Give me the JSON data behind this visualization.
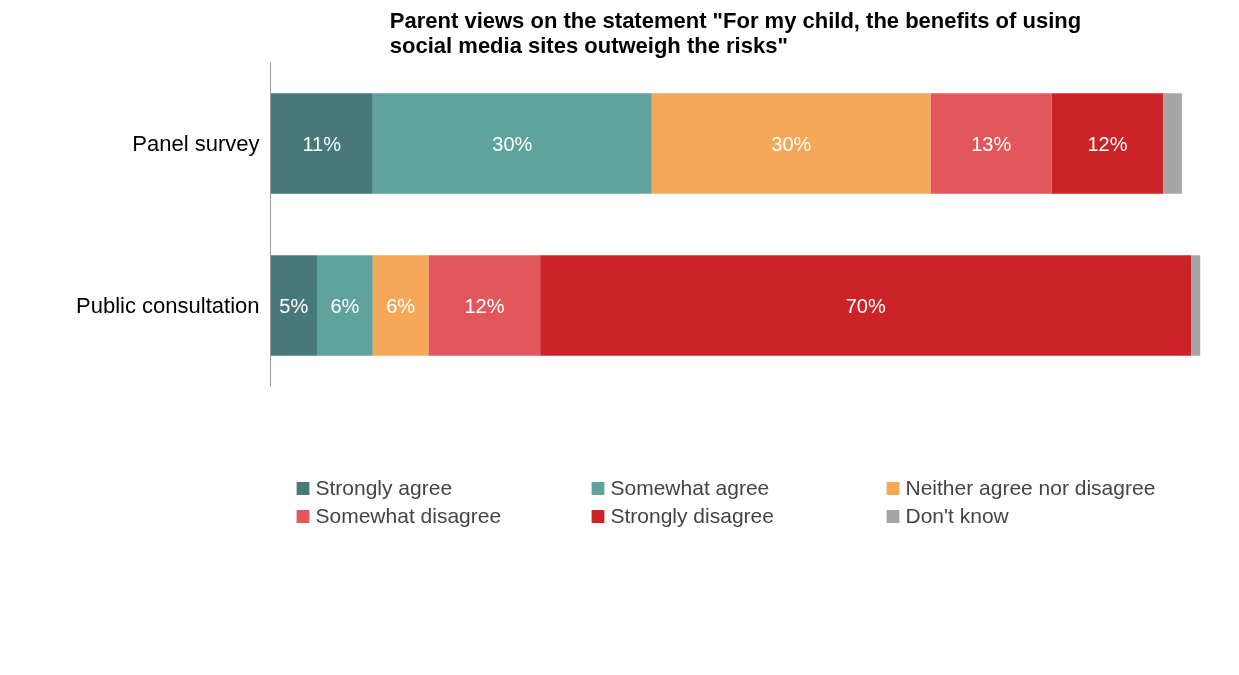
{
  "chart_data": {
    "type": "bar",
    "orientation": "horizontal",
    "stacked": true,
    "title": "Parent views on the statement \"For my child, the benefits of using social media sites outweigh the risks\"",
    "categories": [
      "Panel survey",
      "Public consultation"
    ],
    "xlim": [
      0,
      100
    ],
    "tick_labels": "y",
    "grid": false,
    "legend": "bottom",
    "series": [
      {
        "name": "Strongly agree",
        "color": "#47797a",
        "values": [
          11,
          5
        ],
        "value_labels": [
          "11%",
          "5%"
        ]
      },
      {
        "name": "Somewhat agree",
        "color": "#5fa39c",
        "values": [
          30,
          6
        ],
        "value_labels": [
          "30%",
          "6%"
        ]
      },
      {
        "name": "Neither agree nor disagree",
        "color": "#f5a958",
        "values": [
          30,
          6
        ],
        "value_labels": [
          "30%",
          "6%"
        ]
      },
      {
        "name": "Somewhat disagree",
        "color": "#e3575c",
        "values": [
          13,
          12
        ],
        "value_labels": [
          "13%",
          "12%"
        ]
      },
      {
        "name": "Strongly disagree",
        "color": "#cb2328",
        "values": [
          12,
          70
        ],
        "value_labels": [
          "12%",
          "70%"
        ]
      },
      {
        "name": "Don't know",
        "color": "#a5a5a5",
        "values": [
          2,
          1
        ],
        "value_labels": [
          null,
          null
        ]
      }
    ]
  }
}
